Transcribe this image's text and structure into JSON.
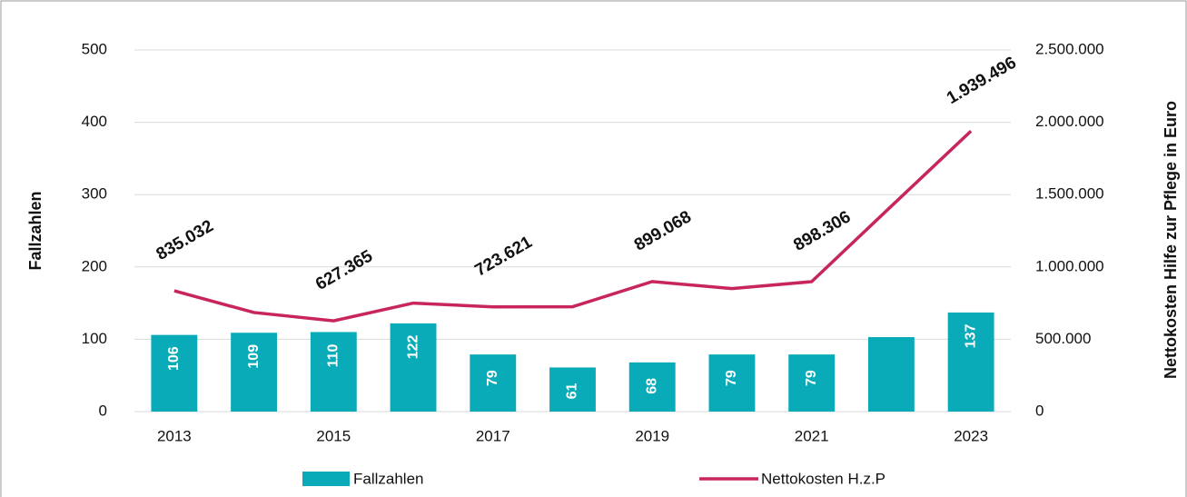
{
  "chart_data": {
    "type": "bar_line",
    "categories": [
      "2013",
      null,
      "2015",
      null,
      "2017",
      null,
      "2019",
      null,
      "2021",
      null,
      "2023"
    ],
    "ylabel": "Fallzahlen",
    "y2label": "Nettokosten Hilfe zur Pflege in Euro",
    "ylim": [
      0,
      500
    ],
    "yticks": [
      0,
      100,
      200,
      300,
      400,
      500
    ],
    "y2lim": [
      0,
      2500000
    ],
    "y2ticks": [
      0,
      {
        "value": 500000,
        "label": "500.000"
      },
      {
        "value": 1000000,
        "label": "1.000.000"
      },
      {
        "value": 1500000,
        "label": "1.500.000"
      },
      {
        "value": 2000000,
        "label": "2.000.000"
      },
      {
        "value": 2500000,
        "label": "2.500.000"
      }
    ],
    "grid": true,
    "legend": "bottom",
    "series": [
      {
        "name": "Fallzahlen",
        "type": "bar",
        "color": "#0aabb8",
        "values": [
          106,
          109,
          110,
          122,
          79,
          61,
          68,
          79,
          79,
          103,
          137
        ],
        "value_labels": [
          "106",
          "109",
          "110",
          "122",
          "79",
          "61",
          "68",
          "79",
          "79",
          null,
          "137"
        ]
      },
      {
        "name": "Nettokosten H.z.P",
        "type": "line",
        "axis": "y2",
        "color": "#c8265a",
        "values": [
          835032,
          685000,
          627365,
          750000,
          723621,
          725000,
          899068,
          850000,
          898306,
          1420000,
          1939496
        ],
        "value_labels": [
          "835.032",
          null,
          "627.365",
          null,
          "723.621",
          null,
          "899.068",
          null,
          "898.306",
          null,
          "1.939.496"
        ]
      }
    ]
  }
}
